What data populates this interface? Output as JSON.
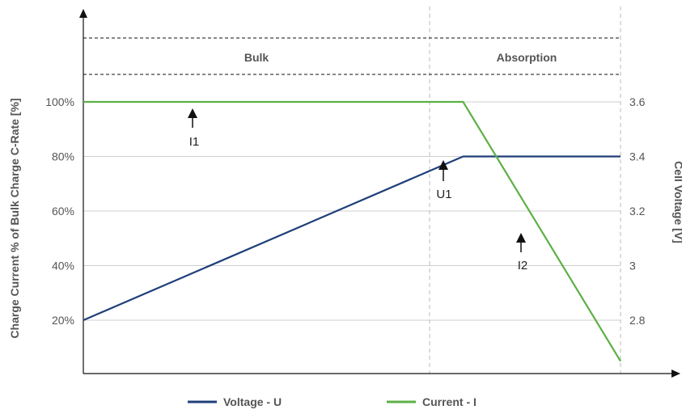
{
  "chart_data": {
    "type": "line",
    "left_axis": {
      "label": "Charge Current % of Bulk Charge C-Rate [%]",
      "ticks": [
        "20%",
        "40%",
        "60%",
        "80%",
        "100%"
      ],
      "tick_values": [
        20,
        40,
        60,
        80,
        100
      ],
      "range": [
        12,
        121
      ]
    },
    "right_axis": {
      "label": "Cell Voltage [V]",
      "ticks": [
        "2.8",
        "3",
        "3.2",
        "3.4",
        "3.6"
      ],
      "tick_values": [
        2.8,
        3.0,
        3.2,
        3.4,
        3.6
      ],
      "range": [
        2.6,
        3.9
      ]
    },
    "grid": true,
    "phases": [
      {
        "name": "Bulk"
      },
      {
        "name": "Absorption"
      }
    ],
    "series": [
      {
        "name": "Voltage - U",
        "color": "#1f3f7a",
        "axis": "right",
        "points": [
          [
            0,
            2.8
          ],
          [
            0.707,
            3.4
          ],
          [
            1.0,
            3.4
          ]
        ]
      },
      {
        "name": "Current - I",
        "color": "#5cb046",
        "axis": "left",
        "points": [
          [
            0,
            100
          ],
          [
            0.707,
            100
          ],
          [
            1.0,
            5
          ]
        ]
      }
    ],
    "annotations": [
      {
        "label": "I1"
      },
      {
        "label": "U1"
      },
      {
        "label": "I2"
      }
    ],
    "legend_position": "bottom"
  }
}
